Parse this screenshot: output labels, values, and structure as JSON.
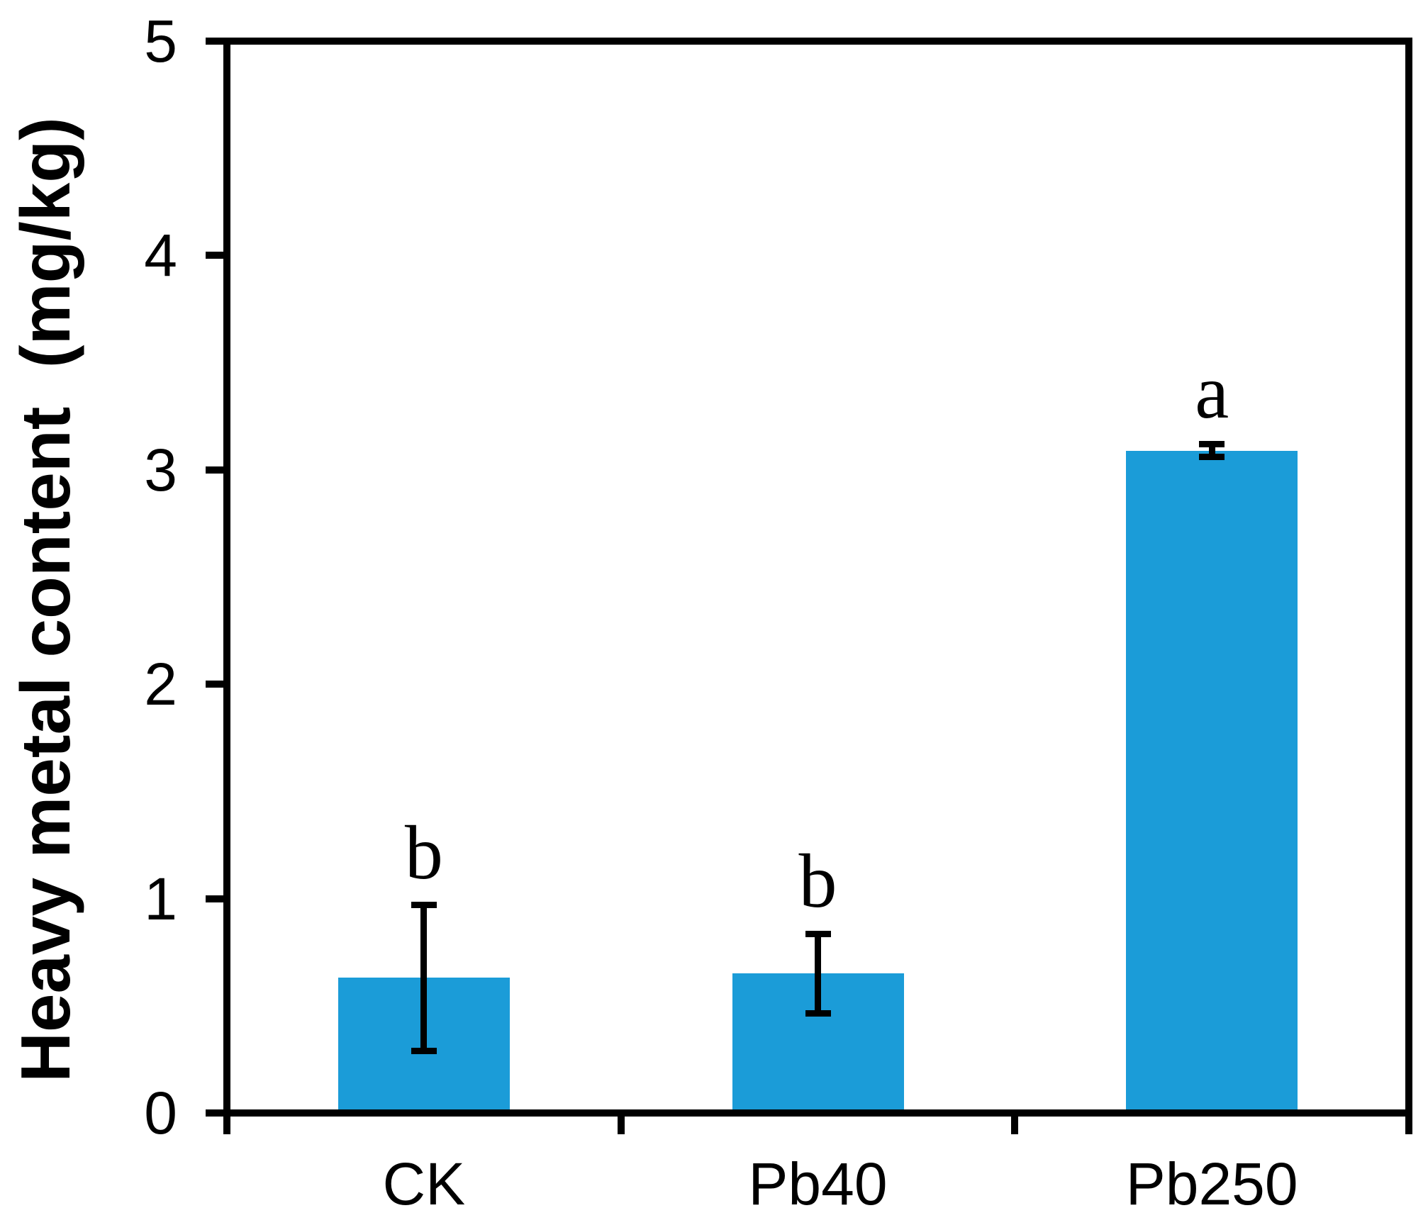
{
  "figure": {
    "background": "#ffffff",
    "axis_color": "#000000",
    "text_color": "#000000"
  },
  "chart_data": {
    "type": "bar",
    "title": "",
    "categories": [
      "CK",
      "Pb40",
      "Pb250"
    ],
    "series": [
      {
        "name": "Heavy metal content",
        "values": [
          0.63,
          0.65,
          3.09
        ],
        "errors": [
          0.34,
          0.185,
          0.03
        ],
        "sig_letters": [
          "b",
          "b",
          "a"
        ]
      }
    ],
    "xlabel": "",
    "ylabel": "Heavy metal content  (mg/kg)",
    "ylim": [
      0,
      5
    ],
    "yticks": [
      0,
      1,
      2,
      3,
      4,
      5
    ],
    "grid": false,
    "legend": false,
    "bar_color": "#1B9CD8",
    "error_bar_color": "#000000",
    "axis_color": "#000000"
  }
}
